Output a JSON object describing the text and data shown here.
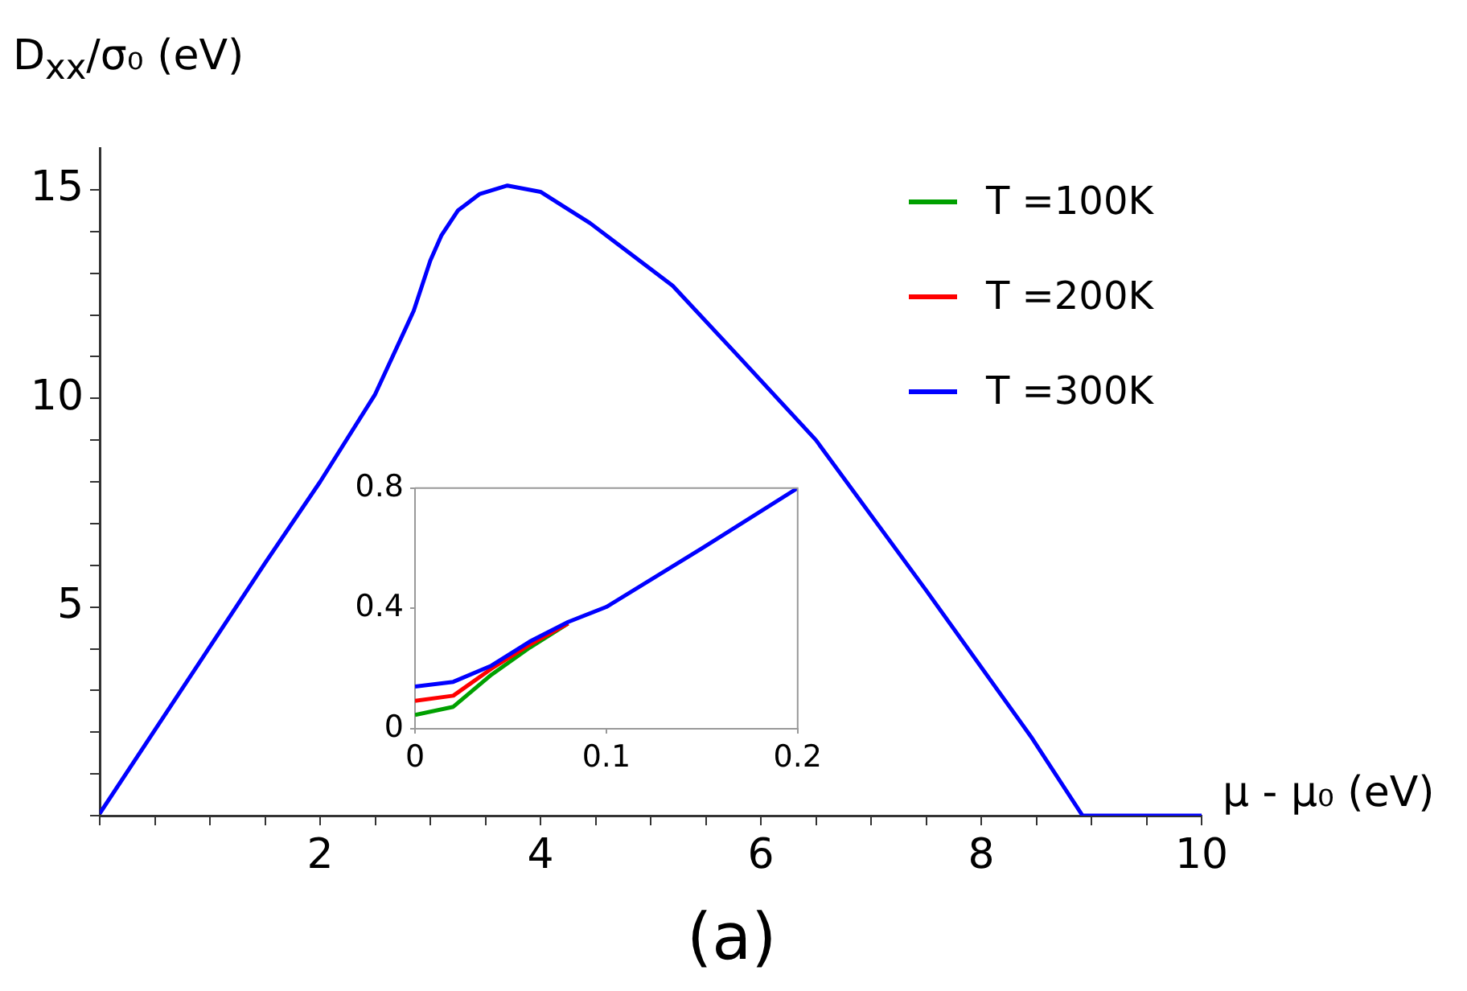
{
  "chart_data": [
    {
      "type": "line",
      "title": "(a)",
      "xlabel": "μ -  μ₀ (eV)",
      "ylabel": "D$_{xx}$/σ₀ (eV)",
      "legend": "top right",
      "grid": false,
      "x": [
        0,
        0.5,
        1,
        1.5,
        2,
        2.5,
        2.85,
        3,
        3.1,
        3.25,
        3.45,
        3.7,
        4.0,
        4.45,
        5.2,
        5.8,
        6.5,
        7.5,
        8.45,
        8.92,
        10
      ],
      "series": [
        {
          "name": "T =100K",
          "color": "#00a000",
          "values": [
            null,
            null,
            null,
            null,
            null,
            null,
            null,
            null,
            null,
            null,
            null,
            null,
            null,
            null,
            null,
            null,
            null,
            null,
            null,
            null,
            null
          ]
        },
        {
          "name": "T =200K",
          "color": "#ff0000",
          "values": [
            null,
            null,
            null,
            null,
            null,
            null,
            null,
            null,
            null,
            null,
            null,
            null,
            null,
            null,
            null,
            null,
            null,
            null,
            null,
            null,
            null
          ]
        },
        {
          "name": "T =300K",
          "color": "#0000ff",
          "values": [
            0.05,
            2.05,
            4.05,
            6.05,
            8.0,
            10.1,
            12.1,
            13.3,
            13.9,
            14.5,
            14.9,
            15.1,
            14.95,
            14.2,
            12.7,
            11.0,
            9.0,
            5.4,
            1.9,
            0,
            0
          ]
        }
      ],
      "xlim": [
        0,
        10
      ],
      "ylim": [
        0,
        16
      ],
      "xticks": [
        {
          "value": 0,
          "label": null
        },
        {
          "value": 0.5,
          "label": null
        },
        {
          "value": 1,
          "label": null
        },
        {
          "value": 1.5,
          "label": null
        },
        2,
        {
          "value": 2.5,
          "label": null
        },
        {
          "value": 3,
          "label": null
        },
        {
          "value": 3.5,
          "label": null
        },
        4,
        {
          "value": 4.5,
          "label": null
        },
        {
          "value": 5,
          "label": null
        },
        {
          "value": 5.5,
          "label": null
        },
        6,
        {
          "value": 6.5,
          "label": null
        },
        {
          "value": 7,
          "label": null
        },
        {
          "value": 7.5,
          "label": null
        },
        8,
        {
          "value": 8.5,
          "label": null
        },
        {
          "value": 9,
          "label": null
        },
        {
          "value": 9.5,
          "label": null
        },
        10
      ],
      "yticks": [
        {
          "value": 0,
          "label": null
        },
        {
          "value": 1,
          "label": null
        },
        {
          "value": 2,
          "label": null
        },
        {
          "value": 3,
          "label": null
        },
        {
          "value": 4,
          "label": null
        },
        5,
        {
          "value": 6,
          "label": null
        },
        {
          "value": 7,
          "label": null
        },
        {
          "value": 8,
          "label": null
        },
        {
          "value": 9,
          "label": null
        },
        10,
        {
          "value": 11,
          "label": null
        },
        {
          "value": 12,
          "label": null
        },
        {
          "value": 13,
          "label": null
        },
        {
          "value": 14,
          "label": null
        },
        15
      ]
    },
    {
      "type": "line",
      "grid": false,
      "x": [
        0,
        0.02,
        0.04,
        0.06,
        0.08,
        0.1,
        0.15,
        0.2
      ],
      "series": [
        {
          "color": "#00a000",
          "values": [
            0.046,
            0.073,
            0.18,
            0.27,
            0.35,
            null,
            null,
            null
          ]
        },
        {
          "color": "#ff0000",
          "values": [
            0.093,
            0.11,
            0.2,
            0.28,
            0.35,
            null,
            null,
            null
          ]
        },
        {
          "color": "#0000ff",
          "values": [
            0.14,
            0.156,
            0.21,
            0.29,
            0.355,
            0.405,
            0.6,
            0.8
          ]
        }
      ],
      "xlim": [
        0,
        0.2
      ],
      "ylim": [
        0,
        0.8
      ],
      "xticks": [
        0,
        0.1,
        0.2
      ],
      "yticks": [
        0,
        0.4,
        0.8
      ]
    }
  ]
}
